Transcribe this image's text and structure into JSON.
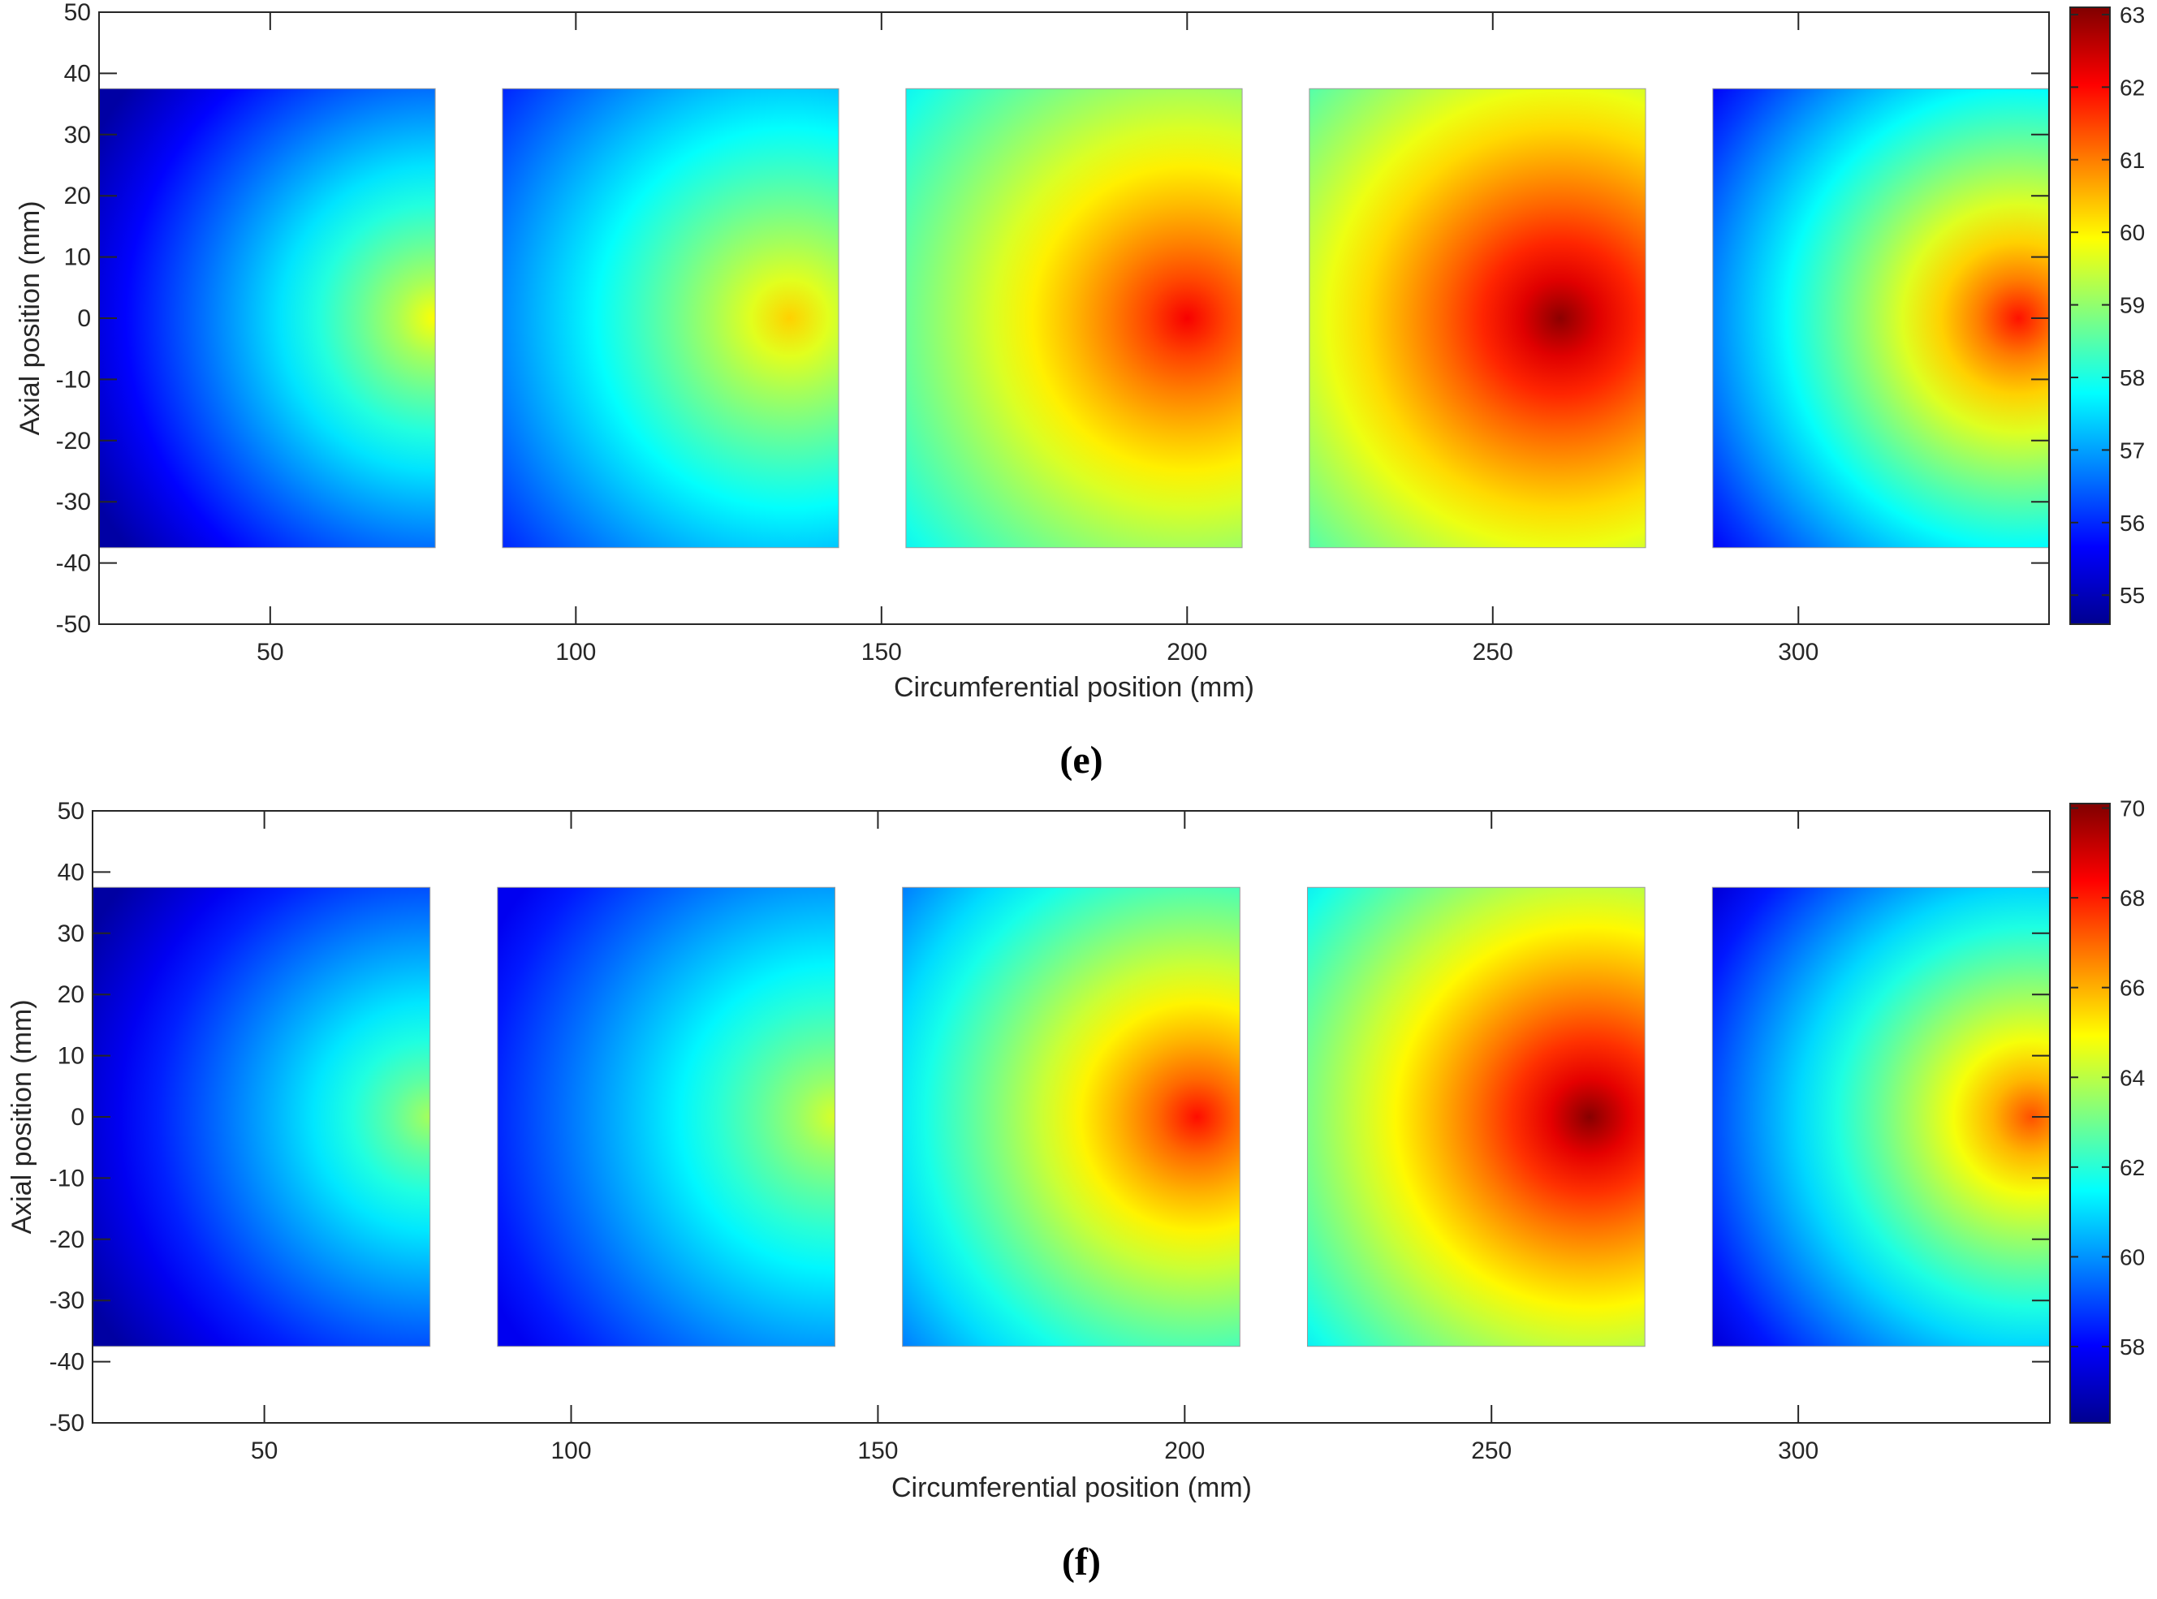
{
  "chart_data": [
    {
      "panel_label": "(e)",
      "type": "heatmap",
      "title": "",
      "xlabel": "Circumferential position (mm)",
      "ylabel": "Axial position (mm)",
      "xlim": [
        22,
        341
      ],
      "ylim": [
        -50,
        50
      ],
      "xticks": [
        50,
        100,
        150,
        200,
        250,
        300
      ],
      "yticks": [
        -50,
        -40,
        -30,
        -20,
        -10,
        0,
        10,
        20,
        30,
        40,
        50
      ],
      "colorbar": {
        "min": 54.6,
        "max": 63.1,
        "ticks": [
          55,
          56,
          57,
          58,
          59,
          60,
          61,
          62,
          63
        ],
        "colormap": "jet"
      },
      "grid": false,
      "patches": [
        {
          "x_range": [
            22,
            77
          ],
          "y_range": [
            -37.5,
            37.5
          ],
          "min_value": 54.8,
          "max_value": 59.9,
          "peak_x": 77,
          "peak_y": 0
        },
        {
          "x_range": [
            88,
            143
          ],
          "y_range": [
            -37.5,
            37.5
          ],
          "min_value": 55.8,
          "max_value": 60.3,
          "peak_x": 135,
          "peak_y": 0
        },
        {
          "x_range": [
            154,
            209
          ],
          "y_range": [
            -37.5,
            37.5
          ],
          "min_value": 57.6,
          "max_value": 62.1,
          "peak_x": 200,
          "peak_y": 0
        },
        {
          "x_range": [
            220,
            275
          ],
          "y_range": [
            -37.5,
            37.5
          ],
          "min_value": 58.0,
          "max_value": 63.0,
          "peak_x": 261,
          "peak_y": 0
        },
        {
          "x_range": [
            286,
            341
          ],
          "y_range": [
            -37.5,
            37.5
          ],
          "min_value": 55.6,
          "max_value": 61.9,
          "peak_x": 336,
          "peak_y": 0
        }
      ]
    },
    {
      "panel_label": "(f)",
      "type": "heatmap",
      "title": "",
      "xlabel": "Circumferential position (mm)",
      "ylabel": "Axial position (mm)",
      "xlim": [
        22,
        341
      ],
      "ylim": [
        -50,
        50
      ],
      "xticks": [
        50,
        100,
        150,
        200,
        250,
        300
      ],
      "yticks": [
        -50,
        -40,
        -30,
        -20,
        -10,
        0,
        10,
        20,
        30,
        40,
        50
      ],
      "colorbar": {
        "min": 56.3,
        "max": 70.1,
        "ticks": [
          58,
          60,
          62,
          64,
          66,
          68,
          70
        ],
        "colormap": "jet"
      },
      "grid": false,
      "patches": [
        {
          "x_range": [
            22,
            77
          ],
          "y_range": [
            -37.5,
            37.5
          ],
          "min_value": 56.6,
          "max_value": 63.7,
          "peak_x": 77,
          "peak_y": 0
        },
        {
          "x_range": [
            88,
            143
          ],
          "y_range": [
            -37.5,
            37.5
          ],
          "min_value": 57.8,
          "max_value": 64.4,
          "peak_x": 143,
          "peak_y": 0
        },
        {
          "x_range": [
            154,
            209
          ],
          "y_range": [
            -37.5,
            37.5
          ],
          "min_value": 59.5,
          "max_value": 68.2,
          "peak_x": 202,
          "peak_y": 0
        },
        {
          "x_range": [
            220,
            275
          ],
          "y_range": [
            -37.5,
            37.5
          ],
          "min_value": 61.0,
          "max_value": 70.0,
          "peak_x": 266,
          "peak_y": 0
        },
        {
          "x_range": [
            286,
            341
          ],
          "y_range": [
            -37.5,
            37.5
          ],
          "min_value": 57.5,
          "max_value": 67.3,
          "peak_x": 338,
          "peak_y": 0
        }
      ]
    }
  ]
}
